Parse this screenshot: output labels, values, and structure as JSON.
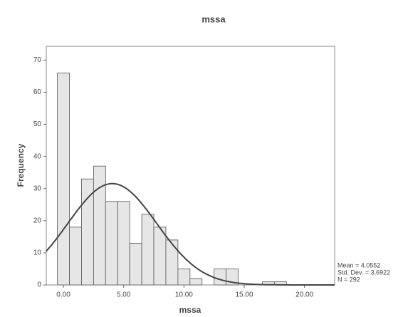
{
  "chart_data": {
    "type": "histogram",
    "title": "mssa",
    "x_label": "mssa",
    "y_label": "Frequency",
    "bins": [
      -0.5,
      0.5,
      1.5,
      2.5,
      3.5,
      4.5,
      5.5,
      6.5,
      7.5,
      8.5,
      9.5,
      10.5,
      11.5,
      12.5,
      13.5,
      14.5,
      15.5,
      16.5,
      17.5,
      18.5
    ],
    "values": [
      66,
      18,
      33,
      37,
      26,
      26,
      13,
      22,
      18,
      14,
      5,
      2,
      0,
      5,
      5,
      0,
      0,
      1,
      1
    ],
    "color": "#e6e6e6",
    "xlim": [
      -1.42,
      22.5
    ],
    "xticks": [
      {
        "value": 0,
        "label": "0.00"
      },
      {
        "value": 5,
        "label": "5.00"
      },
      {
        "value": 10,
        "label": "10.00"
      },
      {
        "value": 15,
        "label": "15.00"
      },
      {
        "value": 20,
        "label": "20.00"
      }
    ],
    "ylim": [
      0,
      74.3
    ],
    "yticks": [
      0,
      10,
      20,
      30,
      40,
      50,
      60,
      70
    ],
    "normal_curve": true,
    "stats": [
      {
        "value": 4.0552,
        "label": "Mean = 4.0552"
      },
      {
        "value": 3.6922,
        "label": "Std. Dev. = 3.6922"
      },
      {
        "value": 292,
        "label": "N = 292"
      }
    ]
  }
}
